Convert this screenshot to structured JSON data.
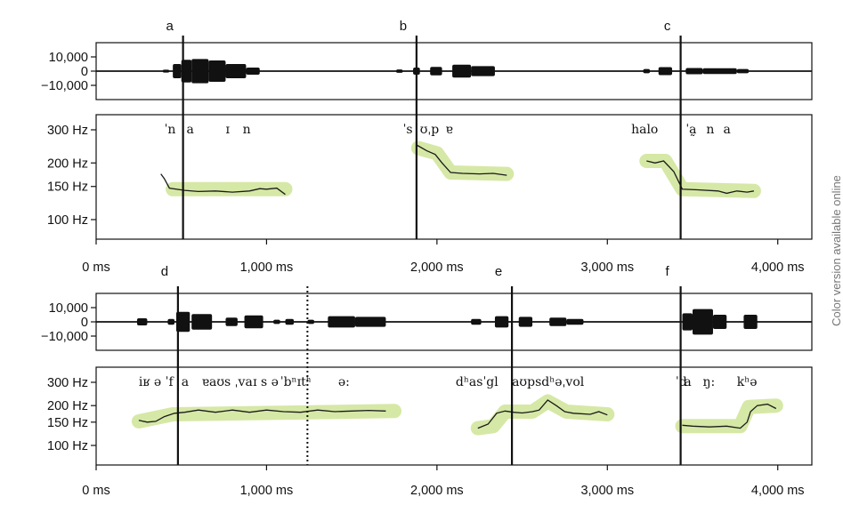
{
  "side_note": "Color version available online",
  "chart_data": {
    "type": "line",
    "highlight_color": "#d6e8a6",
    "trace_color": "#1a1a1a",
    "amp_ticks": [
      "10,000",
      "0",
      "−10,000"
    ],
    "f0_ticks": [
      "300 Hz",
      "200 Hz",
      "150 Hz",
      "100 Hz"
    ],
    "f0_tick_values": [
      300,
      200,
      150,
      100
    ],
    "time_ticks": [
      "0 ms",
      "1,000 ms",
      "2,000 ms",
      "3,000 ms",
      "4,000 ms"
    ],
    "time_tick_values": [
      0,
      1000,
      2000,
      3000,
      4000
    ],
    "rows": [
      {
        "panels": [
          {
            "label": "a",
            "boundary_ms": 510,
            "transcription": [
              {
                "t": 400,
                "text": "ˈn"
              },
              {
                "t": 530,
                "text": "a"
              },
              {
                "t": 760,
                "text": "ɪ"
              },
              {
                "t": 860,
                "text": "n"
              }
            ],
            "waveform": [
              [
                390,
                430,
                1000
              ],
              [
                450,
                500,
                5000
              ],
              [
                500,
                560,
                8000
              ],
              [
                560,
                660,
                8500
              ],
              [
                660,
                760,
                7500
              ],
              [
                760,
                880,
                5000
              ],
              [
                880,
                960,
                2500
              ]
            ],
            "f0": [
              [
                380,
                175
              ],
              [
                400,
                165
              ],
              [
                430,
                147
              ],
              [
                520,
                143
              ],
              [
                600,
                141
              ],
              [
                700,
                142
              ],
              [
                800,
                140
              ],
              [
                900,
                142
              ],
              [
                960,
                146
              ],
              [
                1000,
                145
              ],
              [
                1060,
                147
              ],
              [
                1110,
                136
              ]
            ],
            "highlight": [
              [
                450,
                145
              ],
              [
                1110,
                145
              ]
            ]
          },
          {
            "label": "b",
            "boundary_ms": 1880,
            "transcription": [
              {
                "t": 1800,
                "text": "ˈs"
              },
              {
                "t": 1900,
                "text": "ʊˌp"
              },
              {
                "t": 2050,
                "text": "ɐ"
              }
            ],
            "waveform": [
              [
                1760,
                1800,
                1200
              ],
              [
                1860,
                1900,
                2500
              ],
              [
                1960,
                2030,
                3000
              ],
              [
                2090,
                2200,
                4500
              ],
              [
                2200,
                2340,
                3500
              ]
            ],
            "f0": [
              [
                1885,
                248
              ],
              [
                1940,
                232
              ],
              [
                1990,
                222
              ],
              [
                2030,
                200
              ],
              [
                2080,
                178
              ],
              [
                2150,
                176
              ],
              [
                2250,
                175
              ],
              [
                2330,
                176
              ],
              [
                2410,
                172
              ]
            ],
            "highlight": [
              [
                1890,
                240
              ],
              [
                2000,
                225
              ],
              [
                2080,
                178
              ],
              [
                2410,
                175
              ]
            ]
          },
          {
            "label": "c",
            "boundary_ms": 3430,
            "transcription": [
              {
                "t": 3140,
                "text": "halo"
              },
              {
                "t": 3460,
                "text": "ˈa̰"
              },
              {
                "t": 3580,
                "text": "n"
              },
              {
                "t": 3680,
                "text": "a"
              }
            ],
            "waveform": [
              [
                3210,
                3250,
                1500
              ],
              [
                3300,
                3380,
                2800
              ],
              [
                3460,
                3560,
                2200
              ],
              [
                3560,
                3760,
                2000
              ],
              [
                3760,
                3830,
                1500
              ]
            ],
            "f0": [
              [
                3230,
                205
              ],
              [
                3280,
                200
              ],
              [
                3330,
                205
              ],
              [
                3390,
                180
              ],
              [
                3440,
                145
              ],
              [
                3530,
                144
              ],
              [
                3650,
                142
              ],
              [
                3700,
                138
              ],
              [
                3760,
                142
              ],
              [
                3820,
                140
              ],
              [
                3860,
                142
              ]
            ],
            "highlight": [
              [
                3230,
                205
              ],
              [
                3340,
                205
              ],
              [
                3440,
                145
              ],
              [
                3860,
                142
              ]
            ]
          }
        ]
      },
      {
        "dotted_ms": 1240,
        "panels": [
          {
            "label": "d",
            "boundary_ms": 480,
            "transcription": [
              {
                "t": 250,
                "text": "iʁ ə ˈf"
              },
              {
                "t": 500,
                "text": "a"
              },
              {
                "t": 620,
                "text": "ɐaʊs ˌva"
              },
              {
                "t": 920,
                "text": "ɪ s ə"
              },
              {
                "t": 1080,
                "text": "ˈbⁿɪtʰ"
              },
              {
                "t": 1420,
                "text": "ə:"
              }
            ],
            "waveform": [
              [
                240,
                300,
                2500
              ],
              [
                420,
                460,
                2000
              ],
              [
                470,
                550,
                7000
              ],
              [
                560,
                680,
                5500
              ],
              [
                760,
                830,
                3000
              ],
              [
                870,
                980,
                4500
              ],
              [
                1040,
                1080,
                1500
              ],
              [
                1110,
                1160,
                2000
              ],
              [
                1240,
                1280,
                1500
              ],
              [
                1360,
                1520,
                4000
              ],
              [
                1520,
                1700,
                3500
              ]
            ],
            "f0": [
              [
                250,
                155
              ],
              [
                300,
                150
              ],
              [
                350,
                152
              ],
              [
                400,
                165
              ],
              [
                460,
                175
              ],
              [
                520,
                178
              ],
              [
                600,
                185
              ],
              [
                700,
                178
              ],
              [
                800,
                185
              ],
              [
                900,
                178
              ],
              [
                1000,
                185
              ],
              [
                1100,
                180
              ],
              [
                1200,
                178
              ],
              [
                1300,
                185
              ],
              [
                1400,
                180
              ],
              [
                1500,
                182
              ],
              [
                1600,
                184
              ],
              [
                1700,
                182
              ]
            ],
            "highlight": [
              [
                250,
                152
              ],
              [
                450,
                172
              ],
              [
                1750,
                182
              ]
            ]
          },
          {
            "label": "e",
            "boundary_ms": 2440,
            "transcription": [
              {
                "t": 2110,
                "text": "dʰasˈgl"
              },
              {
                "t": 2440,
                "text": "aʊpsdʰəˌvol"
              }
            ],
            "waveform": [
              [
                2200,
                2260,
                2000
              ],
              [
                2340,
                2420,
                4000
              ],
              [
                2480,
                2560,
                3500
              ],
              [
                2660,
                2760,
                3000
              ],
              [
                2760,
                2860,
                2000
              ]
            ],
            "f0": [
              [
                2240,
                135
              ],
              [
                2300,
                145
              ],
              [
                2350,
                175
              ],
              [
                2400,
                182
              ],
              [
                2450,
                178
              ],
              [
                2500,
                176
              ],
              [
                2560,
                180
              ],
              [
                2600,
                185
              ],
              [
                2650,
                220
              ],
              [
                2700,
                200
              ],
              [
                2750,
                180
              ],
              [
                2800,
                175
              ],
              [
                2900,
                172
              ],
              [
                2950,
                180
              ],
              [
                3000,
                170
              ]
            ],
            "highlight": [
              [
                2240,
                135
              ],
              [
                2330,
                140
              ],
              [
                2400,
                180
              ],
              [
                2560,
                180
              ],
              [
                2650,
                215
              ],
              [
                2760,
                180
              ],
              [
                3000,
                172
              ]
            ]
          },
          {
            "label": "f",
            "boundary_ms": 3430,
            "transcription": [
              {
                "t": 3400,
                "text": "ˈd"
              },
              {
                "t": 3450,
                "text": "a"
              },
              {
                "t": 3560,
                "text": "ŋ:"
              },
              {
                "t": 3760,
                "text": "kʰə"
              }
            ],
            "waveform": [
              [
                3440,
                3500,
                6000
              ],
              [
                3500,
                3620,
                9000
              ],
              [
                3620,
                3700,
                5000
              ],
              [
                3800,
                3880,
                5000
              ]
            ],
            "f0": [
              [
                3440,
                142
              ],
              [
                3500,
                140
              ],
              [
                3600,
                138
              ],
              [
                3700,
                140
              ],
              [
                3780,
                135
              ],
              [
                3820,
                150
              ],
              [
                3840,
                180
              ],
              [
                3880,
                200
              ],
              [
                3940,
                205
              ],
              [
                3990,
                190
              ]
            ],
            "highlight": [
              [
                3440,
                140
              ],
              [
                3780,
                140
              ],
              [
                3830,
                195
              ],
              [
                3990,
                200
              ]
            ]
          }
        ]
      }
    ]
  }
}
